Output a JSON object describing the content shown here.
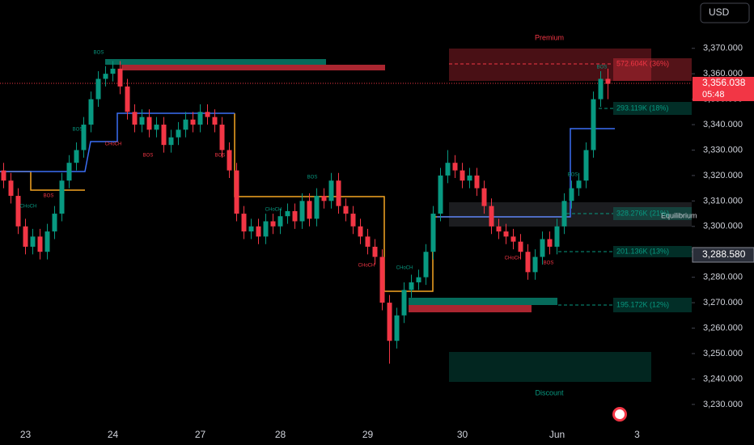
{
  "chart_data": {
    "type": "candlestick",
    "currency": "USD",
    "last_price": "3,356.038",
    "countdown": "05:48",
    "marker_price": "3,288.580",
    "zones": {
      "premium": "Premium",
      "discount": "Discount",
      "equilibrium": "Equilibrium"
    },
    "profile_labels": [
      "572.604K (36%)",
      "293.119K (18%)",
      "328.276K (21%)",
      "201.136K (13%)",
      "195.172K (12%)"
    ],
    "annotations": [
      "BOS",
      "BOS",
      "CHoCH",
      "BOS",
      "BOS",
      "BOS",
      "CHoCH",
      "BOS",
      "CHoCH",
      "CHoCH",
      "CHoCH",
      "BOS",
      "CHoCH",
      "BOS",
      "BOS"
    ],
    "up_color": "#089981",
    "down_color": "#f23645",
    "grid": false,
    "ylim": [
      3222,
      3389
    ],
    "yticks": [
      {
        "value": 3230,
        "label": "3,230.000"
      },
      {
        "value": 3240,
        "label": "3,240.000"
      },
      {
        "value": 3250,
        "label": "3,250.000"
      },
      {
        "value": 3260,
        "label": "3,260.000"
      },
      {
        "value": 3270,
        "label": "3,270.000"
      },
      {
        "value": 3280,
        "label": "3,280.000"
      },
      {
        "value": 3290,
        "label": "3,290.000"
      },
      {
        "value": 3300,
        "label": "3,300.000"
      },
      {
        "value": 3310,
        "label": "3,310.000"
      },
      {
        "value": 3320,
        "label": "3,320.000"
      },
      {
        "value": 3330,
        "label": "3,330.000"
      },
      {
        "value": 3340,
        "label": "3,340.000"
      },
      {
        "value": 3350,
        "label": "3,350.000"
      },
      {
        "value": 3360,
        "label": "3,360.000"
      },
      {
        "value": 3370,
        "label": "3,370.000"
      }
    ],
    "categories": [
      null,
      null,
      null,
      "23",
      null,
      null,
      null,
      null,
      null,
      null,
      null,
      null,
      null,
      null,
      null,
      "24",
      null,
      null,
      null,
      null,
      null,
      null,
      null,
      null,
      null,
      null,
      null,
      "27",
      null,
      null,
      null,
      null,
      null,
      null,
      null,
      null,
      null,
      null,
      "28",
      null,
      null,
      null,
      null,
      null,
      null,
      null,
      null,
      null,
      null,
      null,
      "29",
      null,
      null,
      null,
      null,
      null,
      null,
      null,
      null,
      null,
      null,
      null,
      null,
      "30",
      null,
      null,
      null,
      null,
      null,
      null,
      null,
      null,
      null,
      null,
      null,
      null,
      "Jun",
      null,
      null,
      null,
      null,
      null,
      null,
      null,
      null,
      null,
      null,
      "3"
    ],
    "open": [
      3322,
      3318,
      3312,
      3300,
      3292,
      3296,
      3290,
      3298,
      3305,
      3318,
      3325,
      3330,
      3340,
      3350,
      3358,
      3360,
      3362,
      3355,
      3345,
      3340,
      3343,
      3338,
      3340,
      3332,
      3335,
      3338,
      3342,
      3340,
      3345,
      3343,
      3340,
      3330,
      3322,
      3305,
      3298,
      3300,
      3296,
      3302,
      3300,
      3304,
      3306,
      3302,
      3310,
      3303,
      3312,
      3310,
      3318,
      3308,
      3305,
      3300,
      3296,
      3292,
      3288,
      3270,
      3255,
      3265,
      3275,
      3278,
      3280,
      3290,
      3305,
      3320,
      3325,
      3322,
      3318,
      3320,
      3315,
      3308,
      3300,
      3298,
      3296,
      3294,
      3290,
      3282,
      3288,
      3295,
      3292,
      3300,
      3310,
      3315,
      3318,
      3330,
      3350,
      3358,
      null,
      null,
      null,
      null
    ],
    "high": [
      3325,
      3321,
      3315,
      3303,
      3299,
      3299,
      3301,
      3308,
      3321,
      3328,
      3333,
      3343,
      3353,
      3361,
      3363,
      3365,
      3365,
      3358,
      3348,
      3346,
      3346,
      3343,
      3343,
      3338,
      3341,
      3345,
      3345,
      3348,
      3348,
      3346,
      3343,
      3333,
      3325,
      3308,
      3303,
      3303,
      3305,
      3305,
      3307,
      3309,
      3309,
      3313,
      3313,
      3315,
      3315,
      3321,
      3321,
      3311,
      3308,
      3303,
      3299,
      3295,
      3291,
      3273,
      3268,
      3278,
      3281,
      3283,
      3293,
      3308,
      3323,
      3330,
      3328,
      3325,
      3323,
      3323,
      3318,
      3311,
      3303,
      3301,
      3299,
      3297,
      3293,
      3291,
      3298,
      3298,
      3303,
      3313,
      3318,
      3321,
      3333,
      3353,
      3361,
      3362,
      null,
      null,
      null,
      null
    ],
    "low": [
      3315,
      3309,
      3297,
      3289,
      3289,
      3287,
      3287,
      3295,
      3302,
      3315,
      3322,
      3327,
      3337,
      3347,
      3355,
      3357,
      3352,
      3342,
      3337,
      3337,
      3335,
      3335,
      3329,
      3329,
      3332,
      3335,
      3337,
      3337,
      3340,
      3337,
      3327,
      3319,
      3302,
      3295,
      3295,
      3293,
      3293,
      3297,
      3297,
      3301,
      3299,
      3299,
      3300,
      3300,
      3307,
      3307,
      3305,
      3302,
      3297,
      3293,
      3289,
      3285,
      3267,
      3246,
      3252,
      3262,
      3272,
      3275,
      3277,
      3287,
      3302,
      3317,
      3319,
      3315,
      3315,
      3312,
      3305,
      3297,
      3295,
      3293,
      3291,
      3287,
      3279,
      3279,
      3285,
      3289,
      3289,
      3297,
      3307,
      3312,
      3315,
      3327,
      3347,
      3350,
      null,
      null,
      null,
      null
    ],
    "close": [
      3318,
      3312,
      3300,
      3292,
      3296,
      3290,
      3298,
      3305,
      3318,
      3325,
      3330,
      3340,
      3350,
      3358,
      3360,
      3362,
      3355,
      3345,
      3340,
      3343,
      3338,
      3340,
      3332,
      3335,
      3338,
      3342,
      3340,
      3345,
      3343,
      3340,
      3330,
      3322,
      3305,
      3298,
      3300,
      3296,
      3302,
      3300,
      3304,
      3306,
      3302,
      3310,
      3303,
      3312,
      3310,
      3318,
      3308,
      3305,
      3300,
      3296,
      3292,
      3288,
      3270,
      3255,
      3265,
      3275,
      3278,
      3280,
      3290,
      3305,
      3320,
      3325,
      3322,
      3318,
      3320,
      3315,
      3308,
      3300,
      3298,
      3296,
      3294,
      3290,
      3282,
      3288,
      3295,
      3292,
      3300,
      3310,
      3315,
      3318,
      3330,
      3350,
      3358,
      3356.038,
      null,
      null,
      null,
      null
    ]
  }
}
